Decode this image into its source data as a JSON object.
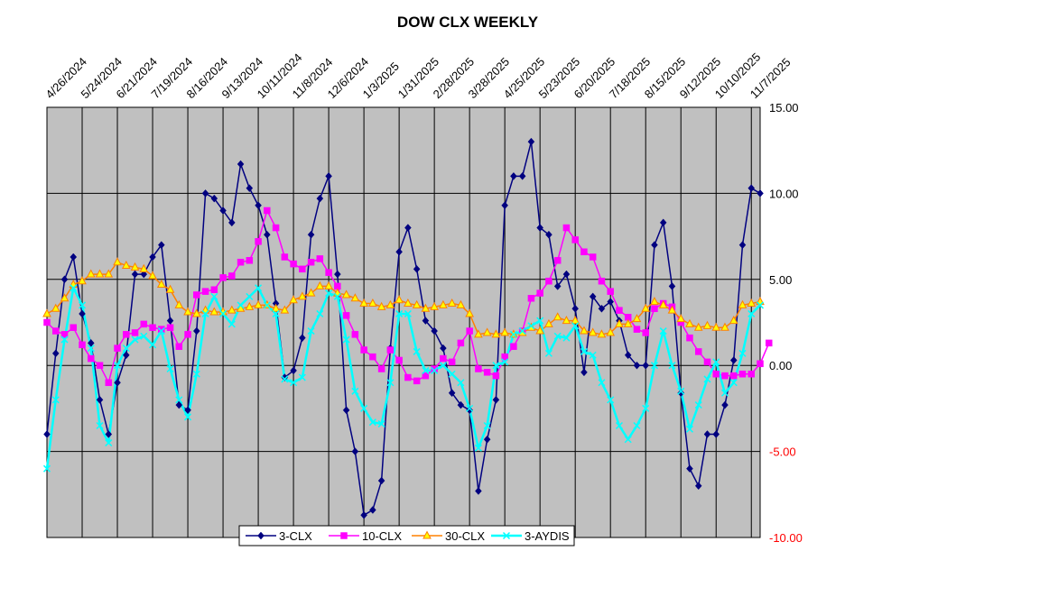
{
  "chart_data": {
    "type": "line",
    "title": "DOW CLX WEEKLY",
    "xlabel": "",
    "ylabel": "",
    "ylim": [
      -10,
      15
    ],
    "yticks": [
      {
        "value": 15,
        "label": "15.00",
        "color": "#000000"
      },
      {
        "value": 10,
        "label": "10.00",
        "color": "#000000"
      },
      {
        "value": 5,
        "label": "5.00",
        "color": "#000000"
      },
      {
        "value": 0,
        "label": "0.00",
        "color": "#000000"
      },
      {
        "value": -5,
        "label": "-5.00",
        "color": "#ff0000"
      },
      {
        "value": -10,
        "label": "-10.00",
        "color": "#ff0000"
      }
    ],
    "x_tick_labels": [
      "4/26/2024",
      "5/24/2024",
      "6/21/2024",
      "7/19/2024",
      "8/16/2024",
      "9/13/2024",
      "10/11/2024",
      "11/8/2024",
      "12/6/2024",
      "1/3/2025",
      "1/31/2025",
      "2/28/2025",
      "3/28/2025",
      "4/25/2025",
      "5/23/2025",
      "6/20/2025",
      "7/18/2025",
      "8/15/2025",
      "9/12/2025",
      "10/10/2025",
      "11/7/2025"
    ],
    "x_tick_index": [
      0,
      4,
      8,
      12,
      16,
      20,
      24,
      28,
      32,
      36,
      40,
      44,
      48,
      52,
      56,
      60,
      64,
      68,
      72,
      76,
      80
    ],
    "grid": true,
    "legend_position": "bottom-center",
    "series": [
      {
        "name": "3-CLX",
        "color": "#000080",
        "marker": "diamond",
        "values": [
          -4.0,
          0.7,
          5.0,
          6.3,
          3.0,
          1.3,
          -2.0,
          -4.0,
          -1.0,
          0.6,
          5.3,
          5.3,
          6.3,
          7.0,
          2.6,
          -2.3,
          -2.6,
          2.0,
          10.0,
          9.7,
          9.0,
          8.3,
          11.7,
          10.3,
          9.3,
          7.6,
          3.6,
          -0.7,
          -0.3,
          1.6,
          7.6,
          9.7,
          11.0,
          5.3,
          -2.6,
          -5.0,
          -8.7,
          -8.4,
          -6.7,
          1.0,
          6.6,
          8.0,
          5.6,
          2.6,
          2.0,
          1.0,
          -1.6,
          -2.3,
          -2.6,
          -7.3,
          -4.3,
          -2.0,
          9.3,
          11.0,
          11.0,
          13.0,
          8.0,
          7.6,
          4.6,
          5.3,
          3.3,
          -0.4,
          4.0,
          3.3,
          3.7,
          2.6,
          0.6,
          0.0,
          0.0,
          7.0,
          8.3,
          4.6,
          -1.6,
          -6.0,
          -7.0,
          -4.0,
          -4.0,
          -2.3,
          0.3,
          7.0,
          10.3,
          10.0
        ]
      },
      {
        "name": "10-CLX",
        "color": "#ff00ff",
        "marker": "square",
        "values": [
          2.5,
          2.0,
          1.8,
          2.2,
          1.2,
          0.4,
          0.0,
          -1.0,
          1.0,
          1.8,
          1.9,
          2.4,
          2.2,
          2.1,
          2.2,
          1.1,
          1.8,
          4.1,
          4.3,
          4.4,
          5.1,
          5.2,
          6.0,
          6.1,
          7.2,
          9.0,
          8.0,
          6.3,
          5.9,
          5.6,
          6.0,
          6.2,
          5.4,
          4.6,
          2.9,
          1.8,
          0.9,
          0.5,
          -0.2,
          0.9,
          0.3,
          -0.7,
          -0.9,
          -0.6,
          -0.2,
          0.4,
          0.2,
          1.3,
          2.0,
          -0.2,
          -0.4,
          -0.6,
          0.5,
          1.1,
          2.0,
          3.9,
          4.2,
          4.9,
          6.1,
          8.0,
          7.3,
          6.6,
          6.3,
          4.9,
          4.3,
          3.2,
          2.8,
          2.1,
          1.9,
          3.3,
          3.6,
          3.4,
          2.5,
          1.6,
          0.8,
          0.2,
          -0.5,
          -0.6,
          -0.6,
          -0.5,
          -0.5,
          0.1,
          1.3
        ]
      },
      {
        "name": "30-CLX",
        "color": "#ff8000",
        "marker": "triangle",
        "values": [
          3.0,
          3.3,
          3.9,
          4.7,
          4.9,
          5.3,
          5.3,
          5.3,
          6.0,
          5.8,
          5.7,
          5.6,
          5.2,
          4.7,
          4.4,
          3.5,
          3.1,
          3.0,
          3.2,
          3.1,
          3.1,
          3.2,
          3.3,
          3.4,
          3.5,
          3.5,
          3.3,
          3.2,
          3.8,
          4.0,
          4.2,
          4.6,
          4.6,
          4.2,
          4.1,
          3.9,
          3.6,
          3.6,
          3.4,
          3.5,
          3.8,
          3.6,
          3.5,
          3.3,
          3.4,
          3.5,
          3.6,
          3.5,
          3.0,
          1.8,
          1.9,
          1.8,
          1.9,
          1.8,
          1.9,
          2.2,
          2.0,
          2.4,
          2.8,
          2.6,
          2.6,
          2.0,
          1.9,
          1.8,
          1.9,
          2.4,
          2.4,
          2.7,
          3.3,
          3.7,
          3.5,
          3.2,
          2.7,
          2.4,
          2.2,
          2.3,
          2.2,
          2.2,
          2.6,
          3.5,
          3.6,
          3.7
        ]
      },
      {
        "name": "3-AYDIS",
        "color": "#00ffff",
        "marker": "x",
        "values": [
          -6.0,
          -2.0,
          1.5,
          4.5,
          3.5,
          1.0,
          -3.5,
          -4.5,
          0.0,
          1.0,
          1.5,
          1.7,
          1.2,
          2.0,
          -0.2,
          -2.0,
          -3.0,
          -0.5,
          3.0,
          4.0,
          3.0,
          2.4,
          3.5,
          4.0,
          4.5,
          3.5,
          3.0,
          -0.8,
          -1.0,
          -0.7,
          2.0,
          3.0,
          4.2,
          4.0,
          1.5,
          -1.5,
          -2.5,
          -3.3,
          -3.4,
          -1.0,
          3.0,
          3.0,
          0.8,
          -0.3,
          -0.3,
          0.0,
          -0.5,
          -1.0,
          -2.5,
          -4.8,
          -3.5,
          0.0,
          0.2,
          1.8,
          2.0,
          2.3,
          2.6,
          0.7,
          1.7,
          1.6,
          2.3,
          0.8,
          0.6,
          -1.0,
          -2.0,
          -3.5,
          -4.3,
          -3.5,
          -2.5,
          0.0,
          2.0,
          0.0,
          -1.5,
          -3.7,
          -2.3,
          -0.8,
          0.2,
          -1.6,
          -1.0,
          0.7,
          3.0,
          3.5
        ]
      }
    ]
  }
}
